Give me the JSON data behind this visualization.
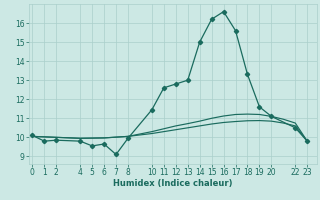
{
  "xlabel": "Humidex (Indice chaleur)",
  "ylabel": "",
  "bg_color": "#cce8e4",
  "grid_color": "#aacfcb",
  "line_color": "#1a6b5e",
  "xticks": [
    0,
    1,
    2,
    4,
    5,
    6,
    7,
    8,
    10,
    11,
    12,
    13,
    14,
    15,
    16,
    17,
    18,
    19,
    20,
    22,
    23
  ],
  "yticks": [
    9,
    10,
    11,
    12,
    13,
    14,
    15,
    16
  ],
  "xlim": [
    -0.3,
    23.8
  ],
  "ylim": [
    8.6,
    17.0
  ],
  "line1_x": [
    0,
    1,
    2,
    4,
    5,
    6,
    7,
    8,
    10,
    11,
    12,
    13,
    14,
    15,
    16,
    17,
    18,
    19,
    20,
    22,
    23
  ],
  "line1_y": [
    10.1,
    9.8,
    9.85,
    9.8,
    9.55,
    9.65,
    9.1,
    9.95,
    11.45,
    12.6,
    12.8,
    13.0,
    15.0,
    16.2,
    16.6,
    15.6,
    13.3,
    11.6,
    11.1,
    10.5,
    9.8
  ],
  "line2_x": [
    0,
    2,
    4,
    6,
    8,
    10,
    11,
    12,
    13,
    14,
    15,
    16,
    17,
    18,
    19,
    20,
    21,
    22,
    23
  ],
  "line2_y": [
    10.05,
    10.0,
    9.95,
    9.97,
    10.05,
    10.3,
    10.45,
    10.6,
    10.72,
    10.85,
    11.0,
    11.12,
    11.2,
    11.22,
    11.2,
    11.1,
    10.95,
    10.75,
    9.8
  ],
  "line3_x": [
    0,
    2,
    4,
    6,
    8,
    10,
    11,
    12,
    13,
    14,
    15,
    16,
    17,
    18,
    19,
    20,
    21,
    22,
    23
  ],
  "line3_y": [
    10.05,
    10.0,
    9.95,
    9.97,
    10.05,
    10.2,
    10.3,
    10.4,
    10.5,
    10.6,
    10.7,
    10.78,
    10.83,
    10.87,
    10.88,
    10.85,
    10.75,
    10.6,
    9.8
  ]
}
